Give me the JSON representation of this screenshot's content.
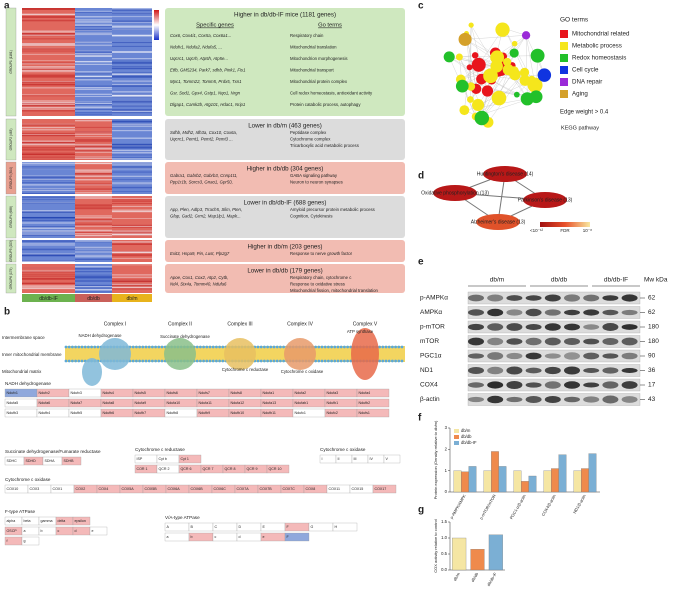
{
  "panel_labels": [
    "a",
    "b",
    "c",
    "d",
    "e",
    "f",
    "g"
  ],
  "a": {
    "groups": [
      {
        "name": "db/db-IF",
        "color": "#6cb24f"
      },
      {
        "name": "db/db",
        "color": "#c9605a"
      },
      {
        "name": "db/m",
        "color": "#e8b31c"
      }
    ],
    "clusters": [
      "GROUP1 (1181)",
      "GROUP2 (463)",
      "GROUP3 (304)",
      "GROUP4 (688)",
      "GROUP5 (203)",
      "GROUP6 (179)"
    ],
    "header_specific": "Specific genes",
    "header_go": "Go terms",
    "boxes": [
      {
        "title": "Higher in db/db-IF mice (1181 genes)",
        "color": "#cfe8bf",
        "genes": [
          "Cox6, Cox4i1, Cox5a, Cox6a1...",
          "Ndufv1, Ndufa2, Ndufa5, ...",
          "Uqcrc1, Uqcrh, Atp5h, Atp5e...",
          "Etfb, GM5234, Park7, sdhb, Pink1, Fis1",
          "Mpc1, Tomm22, Tomm5, Prdx5, Txn1",
          "Gsr, Sod1, Gpx4, Gstp1, Nqo1, Nrgn",
          "Dlgap1, Camk2b, Atg101, Hdac1, Nrip1"
        ],
        "terms": [
          "Respiratory chain",
          "Mitochondrial translation",
          "Mitochondrion morphogenesis",
          "Mitochondrial transport",
          "Mitochondrial protein complex",
          "Cell redox homeostasis, antioxidant activity",
          "Protein catabolic process, autophagy"
        ]
      },
      {
        "title": "Lower in db/m (463 genes)",
        "color": "#dcdcdc",
        "genes": [
          "Sdhb, Mdh2, Idh3a, Cox10, Cox6a,",
          "Uqcrc1, Pemt1, Pemt2, Pemt3 ..."
        ],
        "terms": [
          "Peptidase complex",
          "Cytochrome complex",
          "Tricarboxylic acid metabolic process"
        ]
      },
      {
        "title": "Higher in db/db (304 genes)",
        "color": "#f2bcb2",
        "genes": [
          "Gabra1, Gabrb2, Gabrb3, Cnnp1t1,",
          "Ppp1r1b, Sorcs3, Gnao1, Gpr50,"
        ],
        "terms": [
          "GABA signaling pathway",
          "Neuron to neuron synapses"
        ]
      },
      {
        "title": "Lower in db/db-IF (688 genes)",
        "color": "#dcdcdc",
        "genes": [
          "App, Plen, Adtp3, Trrach5, Slim, Pten,",
          "Gfap, Gad2, Grm2, Map1lp1, Mapk..."
        ],
        "terms": [
          "Amyloid precursor protein metabolic process",
          "Cognition, Cytokinesis"
        ]
      },
      {
        "title": "Higher in db/m (203 genes)",
        "color": "#f2bcb2",
        "genes": [
          "Exit3, Hspa9, Pin, Lust, Plp2g7"
        ],
        "terms": [
          "Response to nerve growth factor"
        ]
      },
      {
        "title": "Lower in db/db (179 genes)",
        "color": "#f2bcb2",
        "genes": [
          "Apoe, Cox1, Cox2, Atp2, Cytb,",
          "Nd4, Stx4a, Tomm40, Ndufa6"
        ],
        "terms": [
          "Respiratory chain, cytochrome c",
          "Response to oxidative stress",
          "Mitochondrial fission, mitochondrial translation"
        ]
      }
    ]
  },
  "b": {
    "spaces": [
      "Intermembrane space",
      "Inner mitochondrial membrane",
      "Mitochondrial matrix"
    ],
    "complexes": [
      "Complex I",
      "Complex II",
      "Complex III",
      "Complex IV",
      "Complex V"
    ],
    "complex_names": [
      "NADH dehydrogenase",
      "Succinate dehydrogenase",
      "Cytochrome c reductase",
      "Cytochrome c oxidase",
      "ATP synthase"
    ],
    "tables": [
      {
        "title": "NADH dehydrogenase",
        "rows": [
          [
            [
              "Ndufv1",
              "#8fa8dc"
            ],
            [
              "Ndufv2",
              "#f4b9b9"
            ],
            [
              "Ndufv3",
              "#ffffff"
            ],
            [
              "Ndufs4",
              "#f4b9b9"
            ],
            [
              "Ndufs5",
              "#f4b9b9"
            ],
            [
              "Ndufs6",
              "#f4b9b9"
            ],
            [
              "Ndufs7",
              "#f4b9b9"
            ],
            [
              "Ndufs8",
              "#f4b9b9"
            ],
            [
              "Ndufa1",
              "#f4b9b9"
            ],
            [
              "Ndufa2",
              "#f4b9b9"
            ],
            [
              "Ndufa3",
              "#f4b9b9"
            ],
            [
              "Ndufa4",
              "#f4b9b9"
            ]
          ],
          [
            [
              "Ndufa5",
              "#ffffff"
            ],
            [
              "Ndufa6",
              "#f4b9b9"
            ],
            [
              "Ndufa7",
              "#f4b9b9"
            ],
            [
              "Ndufa8",
              "#f4b9b9"
            ],
            [
              "Ndufa9",
              "#f4b9b9"
            ],
            [
              "Ndufa10",
              "#f4b9b9"
            ],
            [
              "Ndufa11",
              "#f4b9b9"
            ],
            [
              "Ndufa12",
              "#f4b9b9"
            ],
            [
              "Ndufa13",
              "#f4b9b9"
            ],
            [
              "Ndufab1",
              "#f4b9b9"
            ],
            [
              "Ndufb1",
              "#f4b9b9"
            ],
            [
              "Ndufb2",
              "#f4b9b9"
            ]
          ],
          [
            [
              "Ndufb3",
              "#ffffff"
            ],
            [
              "Ndufb4",
              "#ffffff"
            ],
            [
              "Ndufb5",
              "#ffffff"
            ],
            [
              "Ndufb6",
              "#f4b9b9"
            ],
            [
              "Ndufb7",
              "#f4b9b9"
            ],
            [
              "Ndufb8",
              "#ffffff"
            ],
            [
              "Ndufb9",
              "#f4b9b9"
            ],
            [
              "Ndufb10",
              "#f4b9b9"
            ],
            [
              "Ndufb11",
              "#f4b9b9"
            ],
            [
              "Ndufc1",
              "#ffffff"
            ],
            [
              "Ndufc2",
              "#f4b9b9"
            ],
            [
              "Ndufs1",
              "#f4b9b9"
            ]
          ]
        ]
      },
      {
        "title": "Succinate dehydrogenase/Fumarate reductase",
        "rows": [
          [
            [
              "SDHC",
              "#ffffff"
            ],
            [
              "SDHD",
              "#f4b9b9"
            ],
            [
              "SDHA",
              "#ffffff"
            ],
            [
              "SDHB",
              "#f4b9b9"
            ]
          ]
        ]
      },
      {
        "title": "Cytochrome c reductase",
        "rows": [
          [
            [
              "ISP",
              "#ffffff"
            ],
            [
              "Cyt b",
              "#ffffff"
            ],
            [
              "Cyt 1",
              "#f4b9b9"
            ]
          ],
          [
            [
              "COR 1",
              "#f4b9b9"
            ],
            [
              "QCR 2",
              "#ffffff"
            ],
            [
              "QCR 6",
              "#f4b9b9"
            ],
            [
              "QCR 7",
              "#f4b9b9"
            ],
            [
              "QCR 8",
              "#f4b9b9"
            ],
            [
              "QCR 9",
              "#f4b9b9"
            ],
            [
              "QCR 10",
              "#f4b9b9"
            ]
          ]
        ]
      },
      {
        "title": "Cytochrome c oxidase",
        "rows": [
          [
            [
              "I",
              "#ffffff"
            ],
            [
              "II",
              "#ffffff"
            ],
            [
              "III",
              "#ffffff"
            ],
            [
              "IV",
              "#ffffff"
            ],
            [
              "V",
              "#ffffff"
            ]
          ]
        ]
      },
      {
        "title": "Cytochrome c oxidase",
        "rows": [
          [
            [
              "COX10",
              "#ffffff"
            ],
            [
              "COX3",
              "#ffffff"
            ],
            [
              "COX1",
              "#ffffff"
            ],
            [
              "COX2",
              "#f4b9b9"
            ],
            [
              "COX4",
              "#f4b9b9"
            ],
            [
              "COX5A",
              "#f4b9b9"
            ],
            [
              "COX5B",
              "#f4b9b9"
            ],
            [
              "COX6A",
              "#f4b9b9"
            ],
            [
              "COX6B",
              "#f4b9b9"
            ],
            [
              "COX6C",
              "#f4b9b9"
            ],
            [
              "COX7A",
              "#f4b9b9"
            ],
            [
              "COX7B",
              "#f4b9b9"
            ],
            [
              "COX7C",
              "#f4b9b9"
            ],
            [
              "COX8",
              "#f4b9b9"
            ],
            [
              "COX11",
              "#ffffff"
            ],
            [
              "COX15",
              "#ffffff"
            ],
            [
              "COX17",
              "#f4b9b9"
            ]
          ]
        ]
      },
      {
        "title": "F-type ATPase",
        "rows": [
          [
            [
              "alpha",
              "#ffffff"
            ],
            [
              "beta",
              "#ffffff"
            ],
            [
              "gamma",
              "#ffffff"
            ],
            [
              "delta",
              "#f4b9b9"
            ],
            [
              "epsilon",
              "#f4b9b9"
            ]
          ],
          [
            [
              "OSCP",
              "#f4b9b9"
            ],
            [
              "a",
              "#ffffff"
            ],
            [
              "b",
              "#ffffff"
            ],
            [
              "c",
              "#f4b9b9"
            ],
            [
              "d",
              "#f4b9b9"
            ],
            [
              "e",
              "#ffffff"
            ]
          ],
          [
            [
              "f",
              "#f4b9b9"
            ],
            [
              "g",
              "#ffffff"
            ]
          ]
        ]
      },
      {
        "title": "V/A-type ATPase",
        "rows": [
          [
            [
              "A",
              "#ffffff"
            ],
            [
              "B",
              "#ffffff"
            ],
            [
              "C",
              "#ffffff"
            ],
            [
              "D",
              "#ffffff"
            ],
            [
              "E",
              "#ffffff"
            ],
            [
              "F",
              "#f4b9b9"
            ],
            [
              "G",
              "#ffffff"
            ],
            [
              "H",
              "#ffffff"
            ]
          ],
          [
            [
              "a",
              "#ffffff"
            ],
            [
              "b",
              "#f4b9b9"
            ],
            [
              "c",
              "#ffffff"
            ],
            [
              "d",
              "#ffffff"
            ],
            [
              "e",
              "#f4b9b9"
            ],
            [
              "F",
              "#8fa8dc"
            ]
          ]
        ]
      }
    ]
  },
  "c": {
    "legend_title": "GO terms",
    "terms": [
      {
        "name": "Mitochondrial related",
        "color": "#e8141c"
      },
      {
        "name": "Metabolic process",
        "color": "#f5e61c"
      },
      {
        "name": "Redox homeostasis",
        "color": "#22c02a"
      },
      {
        "name": "Cell cycle",
        "color": "#1034e0"
      },
      {
        "name": "DNA repair",
        "color": "#9a2ad8"
      },
      {
        "name": "Aging",
        "color": "#d4a02a"
      }
    ],
    "edge_note": "Edge weight > 0.4",
    "footer": "KEGG pathway"
  },
  "d": {
    "nodes": [
      "Huntington's disease (14)",
      "Oxidative phosphorylation (13)",
      "Parkinson's disease (13)",
      "Alzheimer's disease (13)"
    ],
    "colorbar_low": "<10⁻¹²",
    "colorbar_title": "FDR",
    "colorbar_high": "10⁻⁸"
  },
  "e": {
    "lanes": [
      "db/m",
      "db/db",
      "db/db-IF"
    ],
    "mw_header": "Mw kDa",
    "rows": [
      {
        "protein": "p-AMPKα",
        "kda": 62
      },
      {
        "protein": "AMPKα",
        "kda": 62
      },
      {
        "protein": "p-mTOR",
        "kda": 180
      },
      {
        "protein": "mTOR",
        "kda": 180
      },
      {
        "protein": "PGC1α",
        "kda": 90
      },
      {
        "protein": "ND1",
        "kda": 36
      },
      {
        "protein": "COX4",
        "kda": 17
      },
      {
        "protein": "β-actin",
        "kda": 43
      }
    ]
  },
  "chart_data": [
    {
      "type": "bar",
      "y_label": "Protein expression (Density relative to db/m)",
      "categories": [
        "p-AMPK/AMPK",
        "p-mTOR/mTOR",
        "PGC1-α/β-actin",
        "COX4/β-actin",
        "ND1/β-actin"
      ],
      "series": [
        {
          "name": "db/m",
          "color": "#f5e6a3",
          "values": [
            1,
            1,
            1,
            1,
            1
          ]
        },
        {
          "name": "db/db",
          "color": "#ef8a4c",
          "values": [
            0.95,
            1.9,
            0.5,
            1.1,
            1.1
          ]
        },
        {
          "name": "db/db-IF",
          "color": "#7bafd4",
          "values": [
            1.2,
            1.2,
            0.75,
            1.75,
            1.8
          ]
        }
      ],
      "ylim": [
        0,
        3
      ],
      "yticks": [
        0,
        1,
        2,
        3
      ]
    },
    {
      "type": "bar",
      "y_label": "COX activity relative to control",
      "categories": [
        "db/m",
        "db/db",
        "db/db-IF"
      ],
      "values": [
        1.0,
        0.65,
        1.1
      ],
      "colors": [
        "#f5e6a3",
        "#ef8a4c",
        "#7bafd4"
      ],
      "ylim": [
        0,
        1.5
      ],
      "yticks": [
        {
          "value": 0,
          "label": "0.0"
        },
        {
          "value": 0.5,
          "label": "0.5"
        },
        {
          "value": 1,
          "label": "1.0"
        },
        {
          "value": 1.5,
          "label": "1.5"
        }
      ]
    }
  ]
}
